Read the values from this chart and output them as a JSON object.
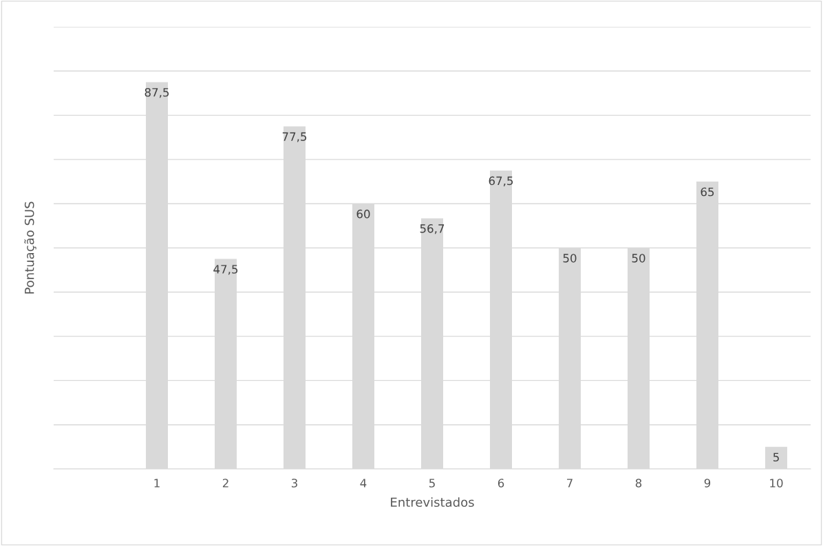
{
  "chart_data": {
    "type": "bar",
    "xlabel": "Entrevistados",
    "ylabel": "Pontuação SUS",
    "categories": [
      null,
      "1",
      "2",
      "3",
      "4",
      "5",
      "6",
      "7",
      "8",
      "9",
      "10"
    ],
    "values": [
      null,
      87.5,
      47.5,
      77.5,
      60,
      56.7,
      67.5,
      50,
      50,
      65,
      5
    ],
    "value_labels": [
      null,
      "87,5",
      "47,5",
      "77,5",
      "60",
      "56,7",
      "67,5",
      "50",
      "50",
      "65",
      "5"
    ],
    "color": "#d9d9d9",
    "ylim": [
      0,
      100
    ],
    "yticks": [
      {
        "value": 0,
        "label": null
      },
      {
        "value": 10,
        "label": null
      },
      {
        "value": 20,
        "label": null
      },
      {
        "value": 30,
        "label": null
      },
      {
        "value": 40,
        "label": null
      },
      {
        "value": 50,
        "label": null
      },
      {
        "value": 60,
        "label": null
      },
      {
        "value": 70,
        "label": null
      },
      {
        "value": 80,
        "label": null
      },
      {
        "value": 90,
        "label": null
      },
      {
        "value": 100,
        "label": null
      }
    ],
    "tick_labels": "x",
    "grid": "y"
  }
}
